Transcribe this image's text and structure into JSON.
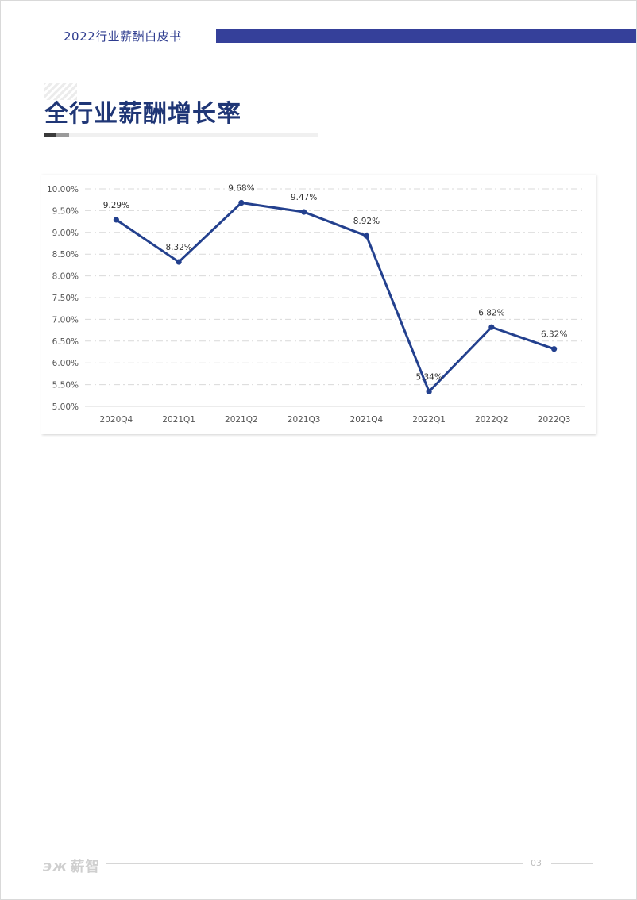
{
  "header": {
    "title": "2022行业薪酬白皮书",
    "bar_color": "#35409a"
  },
  "section": {
    "title": "全行业薪酬增长率"
  },
  "chart_data": {
    "type": "line",
    "categories": [
      "2020Q4",
      "2021Q1",
      "2021Q2",
      "2021Q3",
      "2021Q4",
      "2022Q1",
      "2022Q2",
      "2022Q3"
    ],
    "values": [
      9.29,
      8.32,
      9.68,
      9.47,
      8.92,
      5.34,
      6.82,
      6.32
    ],
    "data_labels": [
      "9.29%",
      "8.32%",
      "9.68%",
      "9.47%",
      "8.92%",
      "5.34%",
      "6.82%",
      "6.32%"
    ],
    "y_ticks": [
      5.0,
      5.5,
      6.0,
      6.5,
      7.0,
      7.5,
      8.0,
      8.5,
      9.0,
      9.5,
      10.0
    ],
    "y_tick_labels": [
      "5.00%",
      "5.50%",
      "6.00%",
      "6.50%",
      "7.00%",
      "7.50%",
      "8.00%",
      "8.50%",
      "9.00%",
      "9.50%",
      "10.00%"
    ],
    "ylim": [
      5.0,
      10.0
    ],
    "grid": true,
    "line_color": "#23408e"
  },
  "footer": {
    "logo_mark": "ЭЖ",
    "logo_text": "薪智",
    "page_number": "03"
  }
}
